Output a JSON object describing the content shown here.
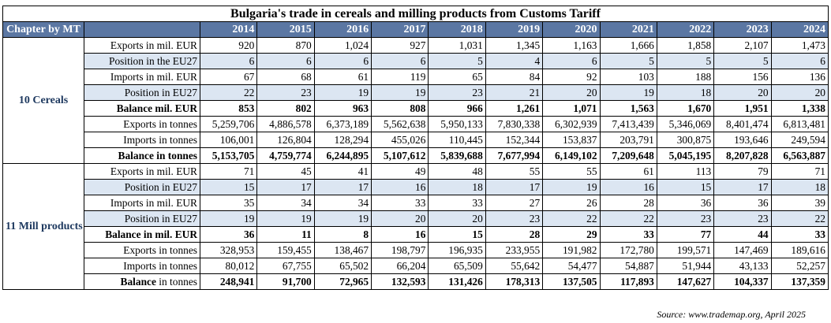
{
  "title": "Bulgaria's trade in cereals and milling products from Customs Tariff",
  "header": {
    "chapter_label": "Chapter by MT",
    "years": [
      "2014",
      "2015",
      "2016",
      "2017",
      "2018",
      "2019",
      "2020",
      "2021",
      "2022",
      "2023",
      "2024"
    ]
  },
  "groups": [
    {
      "name": "10 Cereals",
      "rows": [
        {
          "label": "Exports in mil. EUR",
          "values": [
            "920",
            "870",
            "1,024",
            "927",
            "1,031",
            "1,345",
            "1,163",
            "1,666",
            "1,858",
            "2,107",
            "1,473"
          ]
        },
        {
          "label": "Position in the EU27",
          "values": [
            "6",
            "6",
            "6",
            "6",
            "5",
            "4",
            "6",
            "5",
            "5",
            "5",
            "6"
          ]
        },
        {
          "label": "Imports in mil. EUR",
          "values": [
            "67",
            "68",
            "61",
            "119",
            "65",
            "84",
            "92",
            "103",
            "188",
            "156",
            "136"
          ]
        },
        {
          "label": "Position in EU27",
          "values": [
            "22",
            "23",
            "19",
            "19",
            "23",
            "21",
            "20",
            "19",
            "18",
            "20",
            "20"
          ]
        },
        {
          "label": "Balance mil. EUR",
          "values": [
            "853",
            "802",
            "963",
            "808",
            "966",
            "1,261",
            "1,071",
            "1,563",
            "1,670",
            "1,951",
            "1,338"
          ]
        },
        {
          "label": "Exports in tonnes",
          "values": [
            "5,259,706",
            "4,886,578",
            "6,373,189",
            "5,562,638",
            "5,950,133",
            "7,830,338",
            "6,302,939",
            "7,413,439",
            "5,346,069",
            "8,401,474",
            "6,813,481"
          ]
        },
        {
          "label": "Imports in tonnes",
          "values": [
            "106,001",
            "126,804",
            "128,294",
            "455,026",
            "110,445",
            "152,344",
            "153,837",
            "203,791",
            "300,875",
            "193,646",
            "249,594"
          ]
        },
        {
          "label": "Balance in tonnes",
          "values": [
            "5,153,705",
            "4,759,774",
            "6,244,895",
            "5,107,612",
            "5,839,688",
            "7,677,994",
            "6,149,102",
            "7,209,648",
            "5,045,195",
            "8,207,828",
            "6,563,887"
          ]
        }
      ]
    },
    {
      "name": "11 Mill products",
      "rows": [
        {
          "label": "Exports in mil. EUR",
          "values": [
            "71",
            "45",
            "41",
            "49",
            "48",
            "55",
            "55",
            "61",
            "113",
            "79",
            "71"
          ]
        },
        {
          "label": "Position in EU27",
          "values": [
            "15",
            "17",
            "17",
            "16",
            "18",
            "17",
            "19",
            "16",
            "15",
            "17",
            "18"
          ]
        },
        {
          "label": "Imports in mil. EUR",
          "values": [
            "35",
            "34",
            "34",
            "33",
            "33",
            "27",
            "26",
            "28",
            "36",
            "36",
            "39"
          ]
        },
        {
          "label": "Position in EU27",
          "values": [
            "19",
            "19",
            "19",
            "20",
            "20",
            "23",
            "22",
            "22",
            "23",
            "23",
            "22"
          ]
        },
        {
          "label": "Balance in mil. EUR",
          "values": [
            "36",
            "11",
            "8",
            "16",
            "15",
            "28",
            "29",
            "33",
            "77",
            "44",
            "33"
          ]
        },
        {
          "label": "Exports in tonnes",
          "values": [
            "328,953",
            "159,455",
            "138,467",
            "198,797",
            "196,935",
            "233,955",
            "191,982",
            "172,780",
            "199,571",
            "147,469",
            "189,616"
          ]
        },
        {
          "label": "Imports in tonnes",
          "values": [
            "80,012",
            "67,755",
            "65,502",
            "66,204",
            "65,509",
            "55,642",
            "54,477",
            "54,887",
            "51,944",
            "43,133",
            "52,257"
          ]
        },
        {
          "label_bold": "Balance",
          "label_rest": " in tonnes",
          "values": [
            "248,941",
            "91,700",
            "72,965",
            "132,593",
            "131,426",
            "178,313",
            "137,505",
            "117,893",
            "147,627",
            "104,337",
            "137,359"
          ]
        }
      ]
    }
  ],
  "source": "Source: www.trademap.org, April 2025"
}
